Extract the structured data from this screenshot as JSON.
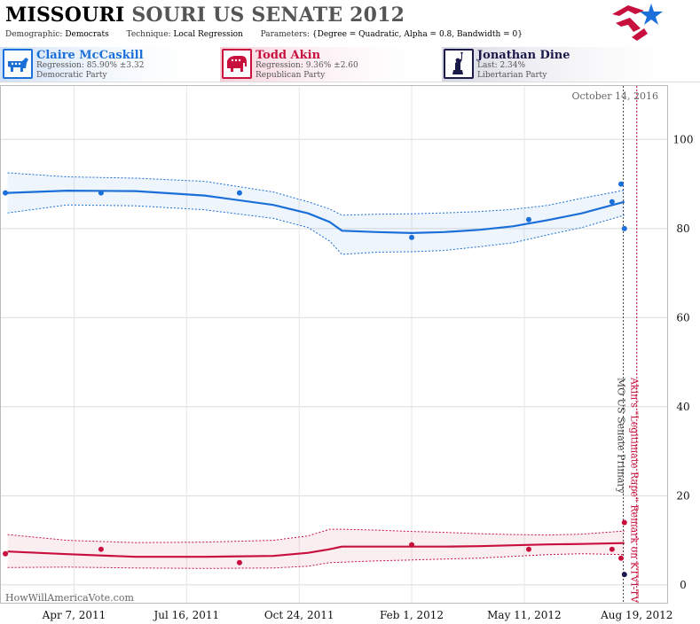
{
  "header": {
    "title_state": "MISSOURI",
    "title_race": "SOURI US SENATE 2012",
    "demographic_label": "Demographic:",
    "demographic_value": "Democrats",
    "technique_label": "Technique:",
    "technique_value": "Local Regression",
    "parameters_label": "Parameters:",
    "parameters_value": "{Degree = Quadratic, Alpha = 0.8, Bandwidth = 0}"
  },
  "candidates": [
    {
      "name": "Claire McCaskill",
      "stat": "Regression: 85.90% ±3.32",
      "party": "Democratic Party",
      "color": "#1a6fd8",
      "icon": "donkey-icon"
    },
    {
      "name": "Todd Akin",
      "stat": "Regression: 9.36% ±2.60",
      "party": "Republican Party",
      "color": "#c8103e",
      "icon": "elephant-icon"
    },
    {
      "name": "Jonathan Dine",
      "stat": "Last: 2.34%",
      "party": "Libertarian Party",
      "color": "#1a1a4a",
      "icon": "statue-of-liberty-icon"
    }
  ],
  "watermark": "HowWillAmericaVote.com",
  "chart_data": {
    "type": "line",
    "x_ticks": [
      "Apr 7, 2011",
      "Jul 16, 2011",
      "Oct 24, 2011",
      "Feb 1, 2012",
      "May 11, 2012",
      "Aug 19, 2012"
    ],
    "y_ticks": [
      0,
      20,
      40,
      60,
      80,
      100
    ],
    "xlim": [
      "2011-02-01",
      "2012-09-15"
    ],
    "ylim": [
      -4,
      112
    ],
    "grid": "horizontal",
    "date_annotation": "October 14, 2016",
    "events": [
      {
        "date": "2012-08-07",
        "label": "MO US Senate Primary",
        "color": "#444444"
      },
      {
        "date": "2012-08-19",
        "label": "Akin's \"Legitimate Rape\" Remark on KTVI-TV",
        "color": "#c8103e"
      }
    ],
    "series": [
      {
        "name": "Claire McCaskill",
        "color": "#1a6fd8",
        "fit_x": [
          "2011-02-07",
          "2011-04-01",
          "2011-06-01",
          "2011-08-01",
          "2011-10-01",
          "2011-11-01",
          "2011-11-20",
          "2011-12-01",
          "2012-01-01",
          "2012-02-01",
          "2012-03-01",
          "2012-04-01",
          "2012-05-01",
          "2012-06-01",
          "2012-07-01",
          "2012-08-08"
        ],
        "fit_y": [
          88.0,
          88.5,
          88.4,
          87.4,
          85.3,
          83.4,
          81.5,
          79.5,
          79.2,
          79.0,
          79.2,
          79.7,
          80.5,
          81.9,
          83.4,
          86.0
        ],
        "upper": [
          92.5,
          91.6,
          91.3,
          90.6,
          88.2,
          86.0,
          84.4,
          83.0,
          83.2,
          83.3,
          83.5,
          83.8,
          84.3,
          85.2,
          86.8,
          88.6
        ],
        "lower": [
          83.5,
          85.3,
          85.1,
          84.2,
          82.3,
          80.2,
          77.2,
          74.2,
          74.7,
          74.8,
          75.1,
          75.9,
          76.8,
          78.6,
          80.2,
          83.0
        ],
        "points_x": [
          "2011-02-05",
          "2011-05-01",
          "2011-09-01",
          "2012-02-01",
          "2012-05-15",
          "2012-07-28",
          "2012-08-05",
          "2012-08-08"
        ],
        "points_y": [
          88,
          88,
          88,
          78,
          82,
          86,
          90,
          80
        ]
      },
      {
        "name": "Todd Akin",
        "color": "#c8103e",
        "fit_x": [
          "2011-02-07",
          "2011-04-01",
          "2011-06-01",
          "2011-08-01",
          "2011-10-01",
          "2011-11-01",
          "2011-11-20",
          "2011-12-01",
          "2012-01-01",
          "2012-02-01",
          "2012-03-01",
          "2012-04-01",
          "2012-05-01",
          "2012-06-01",
          "2012-07-01",
          "2012-08-08"
        ],
        "fit_y": [
          7.5,
          6.9,
          6.3,
          6.3,
          6.5,
          7.2,
          8.0,
          8.6,
          8.6,
          8.6,
          8.6,
          8.7,
          8.9,
          9.1,
          9.2,
          9.4
        ],
        "upper": [
          11.3,
          10.0,
          9.5,
          9.6,
          10.0,
          11.0,
          12.5,
          12.5,
          12.3,
          12.0,
          11.8,
          11.5,
          11.3,
          11.2,
          11.4,
          12.1
        ],
        "lower": [
          3.9,
          4.0,
          3.8,
          3.7,
          3.8,
          4.2,
          5.0,
          5.1,
          5.4,
          5.6,
          5.8,
          6.0,
          6.4,
          6.8,
          7.0,
          6.8
        ],
        "points_x": [
          "2011-02-05",
          "2011-05-01",
          "2011-09-01",
          "2012-02-01",
          "2012-05-15",
          "2012-07-28",
          "2012-08-05",
          "2012-08-08"
        ],
        "points_y": [
          7,
          8,
          5,
          9,
          8,
          8,
          6,
          14
        ]
      },
      {
        "name": "Jonathan Dine",
        "color": "#1a1a4a",
        "fit_x": [],
        "fit_y": [],
        "upper": [],
        "lower": [],
        "points_x": [
          "2012-08-08"
        ],
        "points_y": [
          2.34
        ]
      }
    ]
  }
}
